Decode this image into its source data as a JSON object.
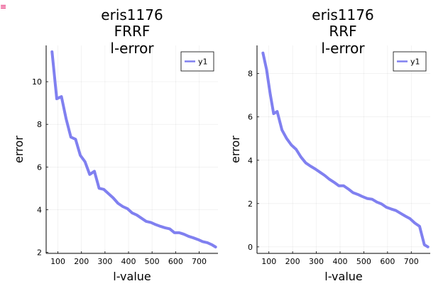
{
  "chart_data": [
    {
      "type": "line",
      "title": [
        "eris1176",
        "FRRF",
        "l-error"
      ],
      "xlabel": "l-value",
      "ylabel": "error",
      "xlim": [
        50,
        780
      ],
      "ylim": [
        1.95,
        11.7
      ],
      "xticks": [
        100,
        200,
        300,
        400,
        500,
        600,
        700
      ],
      "yticks": [
        2,
        4,
        6,
        8,
        10
      ],
      "grid": true,
      "legend": {
        "position": "top-right",
        "entries": [
          "y1"
        ]
      },
      "series": [
        {
          "name": "y1",
          "color": "#8080f0",
          "x": [
            75,
            95,
            115,
            135,
            155,
            175,
            195,
            215,
            235,
            255,
            275,
            295,
            315,
            335,
            355,
            375,
            395,
            415,
            435,
            455,
            475,
            495,
            515,
            535,
            555,
            575,
            595,
            615,
            635,
            655,
            675,
            695,
            715,
            735,
            755,
            770
          ],
          "y": [
            11.4,
            9.2,
            9.3,
            8.25,
            7.4,
            7.3,
            6.55,
            6.25,
            5.65,
            5.8,
            5.0,
            4.95,
            4.75,
            4.55,
            4.3,
            4.15,
            4.05,
            3.85,
            3.75,
            3.6,
            3.45,
            3.4,
            3.3,
            3.22,
            3.15,
            3.1,
            2.92,
            2.92,
            2.85,
            2.75,
            2.68,
            2.6,
            2.5,
            2.45,
            2.35,
            2.25
          ]
        }
      ]
    },
    {
      "type": "line",
      "title": [
        "eris1176",
        "RRF",
        "l-error"
      ],
      "xlabel": "l-value",
      "ylabel": "error",
      "xlim": [
        50,
        780
      ],
      "ylim": [
        -0.3,
        9.3
      ],
      "xticks": [
        100,
        200,
        300,
        400,
        500,
        600,
        700
      ],
      "yticks": [
        0,
        2,
        4,
        6,
        8
      ],
      "grid": true,
      "legend": {
        "position": "top-right",
        "entries": [
          "y1"
        ]
      },
      "series": [
        {
          "name": "y1",
          "color": "#8080f0",
          "x": [
            75,
            90,
            105,
            120,
            135,
            155,
            175,
            195,
            215,
            235,
            255,
            275,
            295,
            315,
            335,
            355,
            375,
            395,
            415,
            435,
            455,
            475,
            495,
            515,
            535,
            555,
            575,
            595,
            615,
            635,
            655,
            675,
            695,
            715,
            735,
            755,
            770
          ],
          "y": [
            8.95,
            8.2,
            7.1,
            6.15,
            6.25,
            5.4,
            5.0,
            4.7,
            4.5,
            4.15,
            3.88,
            3.73,
            3.6,
            3.45,
            3.3,
            3.12,
            2.98,
            2.82,
            2.82,
            2.67,
            2.5,
            2.42,
            2.32,
            2.23,
            2.2,
            2.07,
            1.98,
            1.83,
            1.75,
            1.68,
            1.55,
            1.42,
            1.3,
            1.1,
            0.95,
            0.1,
            0.0
          ]
        }
      ]
    }
  ]
}
